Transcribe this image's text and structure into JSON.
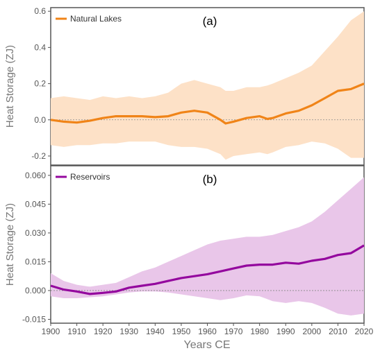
{
  "figure": {
    "x_axis_label": "Years CE",
    "x_ticks": [
      "1900",
      "1910",
      "1920",
      "1930",
      "1940",
      "1950",
      "1960",
      "1970",
      "1980",
      "1990",
      "2000",
      "2010",
      "2020"
    ]
  },
  "chart_data": [
    {
      "type": "line",
      "panel_label": "(a)",
      "ylabel": "Heat Storage (ZJ)",
      "xlim": [
        1900,
        2020
      ],
      "ylim": [
        -0.25,
        0.62
      ],
      "yticks": [
        "-0.2",
        "0.0",
        "0.2",
        "0.4",
        "0.6"
      ],
      "ytick_values": [
        -0.2,
        0.0,
        0.2,
        0.4,
        0.6
      ],
      "zero_line": true,
      "legend_position": "top-left",
      "colors": {
        "line": "#f08418",
        "band": "#fde1c7",
        "zero": "#888888"
      },
      "series": [
        {
          "name": "Natural Lakes",
          "x": [
            1900,
            1905,
            1910,
            1915,
            1920,
            1925,
            1930,
            1935,
            1940,
            1945,
            1950,
            1955,
            1960,
            1965,
            1967,
            1970,
            1975,
            1980,
            1983,
            1985,
            1990,
            1995,
            2000,
            2005,
            2010,
            2015,
            2020
          ],
          "values": [
            0.0,
            -0.01,
            -0.015,
            -0.005,
            0.01,
            0.02,
            0.02,
            0.02,
            0.015,
            0.02,
            0.04,
            0.05,
            0.04,
            0.0,
            -0.02,
            -0.01,
            0.01,
            0.02,
            0.005,
            0.01,
            0.035,
            0.05,
            0.08,
            0.12,
            0.16,
            0.17,
            0.2
          ],
          "lower": [
            -0.14,
            -0.15,
            -0.14,
            -0.14,
            -0.13,
            -0.13,
            -0.12,
            -0.12,
            -0.12,
            -0.14,
            -0.15,
            -0.15,
            -0.16,
            -0.19,
            -0.22,
            -0.2,
            -0.19,
            -0.18,
            -0.19,
            -0.18,
            -0.15,
            -0.14,
            -0.12,
            -0.13,
            -0.16,
            -0.21,
            -0.21
          ],
          "upper": [
            0.12,
            0.13,
            0.12,
            0.11,
            0.13,
            0.12,
            0.13,
            0.12,
            0.13,
            0.15,
            0.2,
            0.22,
            0.2,
            0.18,
            0.16,
            0.16,
            0.18,
            0.18,
            0.19,
            0.2,
            0.23,
            0.26,
            0.3,
            0.38,
            0.46,
            0.55,
            0.6
          ]
        }
      ]
    },
    {
      "type": "line",
      "panel_label": "(b)",
      "ylabel": "Heat Storage (ZJ)",
      "xlim": [
        1900,
        2020
      ],
      "ylim": [
        -0.017,
        0.065
      ],
      "yticks": [
        "-0.015",
        "0.000",
        "0.015",
        "0.030",
        "0.045",
        "0.060"
      ],
      "ytick_values": [
        -0.015,
        0.0,
        0.015,
        0.03,
        0.045,
        0.06
      ],
      "zero_line": true,
      "legend_position": "top-left",
      "colors": {
        "line": "#94089e",
        "band": "#e9c6e9",
        "zero": "#888888"
      },
      "series": [
        {
          "name": "Reservoirs",
          "x": [
            1900,
            1905,
            1910,
            1915,
            1920,
            1925,
            1930,
            1935,
            1940,
            1945,
            1950,
            1955,
            1960,
            1965,
            1970,
            1975,
            1980,
            1985,
            1990,
            1995,
            2000,
            2005,
            2010,
            2015,
            2020
          ],
          "values": [
            0.0025,
            0.0005,
            -0.0005,
            -0.0018,
            -0.0012,
            -0.0005,
            0.0015,
            0.0025,
            0.0035,
            0.005,
            0.0065,
            0.0075,
            0.0085,
            0.01,
            0.0115,
            0.013,
            0.0135,
            0.0135,
            0.0145,
            0.014,
            0.0155,
            0.0165,
            0.0185,
            0.0195,
            0.0235
          ],
          "lower": [
            -0.003,
            -0.004,
            -0.004,
            -0.0035,
            -0.003,
            -0.002,
            -0.001,
            -0.0005,
            -0.0005,
            -0.001,
            -0.002,
            -0.003,
            -0.004,
            -0.005,
            -0.004,
            -0.0025,
            -0.003,
            -0.0055,
            -0.0065,
            -0.0055,
            -0.0065,
            -0.009,
            -0.012,
            -0.013,
            -0.012
          ],
          "upper": [
            0.009,
            0.005,
            0.003,
            0.002,
            0.003,
            0.004,
            0.007,
            0.01,
            0.012,
            0.015,
            0.018,
            0.021,
            0.024,
            0.026,
            0.027,
            0.028,
            0.028,
            0.029,
            0.031,
            0.033,
            0.036,
            0.041,
            0.047,
            0.053,
            0.059
          ]
        }
      ]
    }
  ]
}
